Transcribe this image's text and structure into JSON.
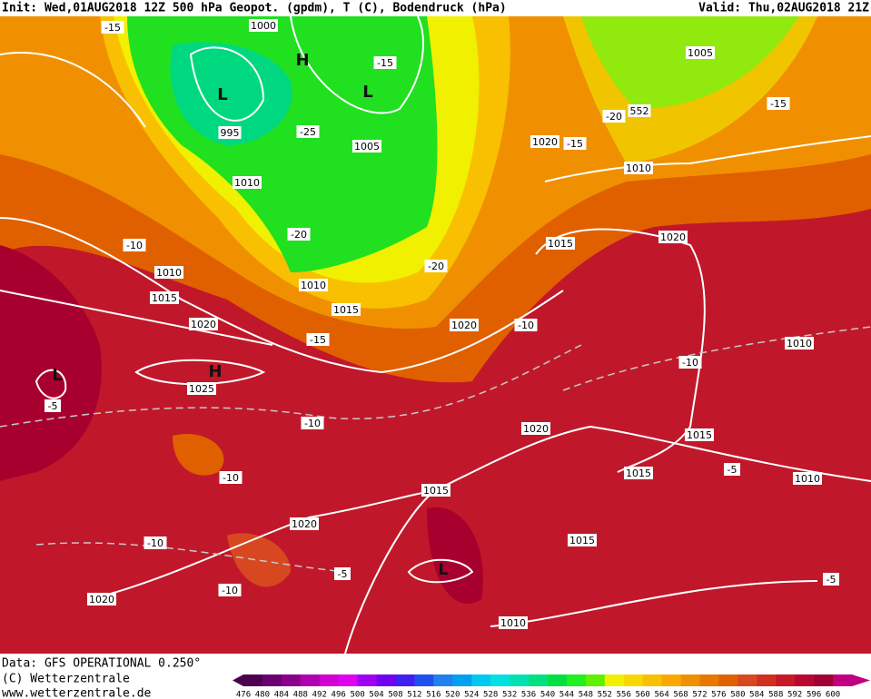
{
  "header": {
    "init": "Init: Wed,01AUG2018 12Z 500 hPa Geopot. (gpdm), T (C), Bodendruck (hPa)",
    "valid": "Valid: Thu,02AUG2018 21Z"
  },
  "map": {
    "labels": [
      "1000",
      "-15",
      "H",
      "-15",
      "L",
      "L",
      "995",
      "-25",
      "1005",
      "1010",
      "-20",
      "1010",
      "1015",
      "-20",
      "1020",
      "-15",
      "1010",
      "1015",
      "-10",
      "H",
      "L",
      "1025",
      "-5",
      "-10",
      "-10",
      "1015",
      "1020",
      "-10",
      "-5",
      "-10",
      "L",
      "1020",
      "1010",
      "1015",
      "1015",
      "1015",
      "1020",
      "-5",
      "1010",
      "-5",
      "1010",
      "-10",
      "1020",
      "1015",
      "1020",
      "-10",
      "1010",
      "1020",
      "-15",
      "-20",
      "552",
      "1005",
      "-15"
    ]
  },
  "footer": {
    "data": "Data: GFS OPERATIONAL 0.250°",
    "copyright": "(C) Wetterzentrale",
    "url": "www.wetterzentrale.de"
  },
  "legend": {
    "levels": [
      476,
      480,
      484,
      488,
      492,
      496,
      500,
      504,
      508,
      512,
      516,
      520,
      524,
      528,
      532,
      536,
      540,
      544,
      548,
      552,
      556,
      560,
      564,
      568,
      572,
      576,
      580,
      584,
      588,
      592,
      596,
      600
    ],
    "colors": [
      "#4b0050",
      "#6a0070",
      "#8a008a",
      "#b000b0",
      "#d000d0",
      "#e000f0",
      "#a000f0",
      "#7000f0",
      "#4020f0",
      "#2050f0",
      "#2080f0",
      "#00a0f0",
      "#00c8f0",
      "#00e0e0",
      "#00e0b0",
      "#00e080",
      "#00e040",
      "#20f020",
      "#60f000",
      "#f0f000",
      "#f8d800",
      "#f8c000",
      "#f8a800",
      "#f09000",
      "#e87800",
      "#e06000",
      "#d84820",
      "#d03020",
      "#c81828",
      "#b80830",
      "#a00030",
      "#c00080"
    ]
  }
}
